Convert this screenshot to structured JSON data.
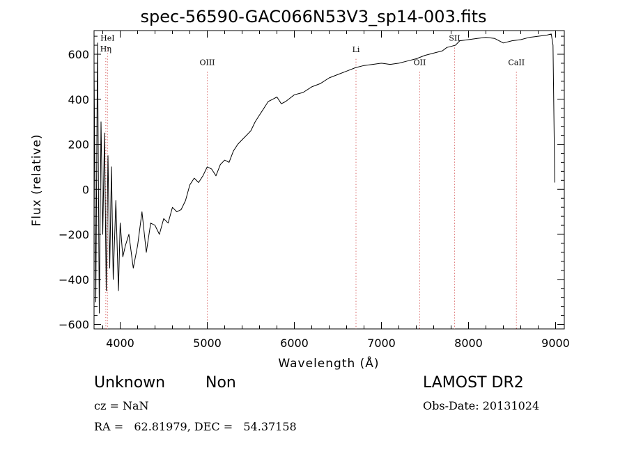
{
  "header": {
    "title": "spec-56590-GAC066N53V3_sp14-003.fits"
  },
  "footer": {
    "class": "Unknown",
    "subclass": "Non",
    "survey": "LAMOST DR2",
    "cz": "cz = NaN",
    "obs_date": "Obs-Date: 20131024",
    "radec": "RA =   62.81979, DEC =   54.37158"
  },
  "chart_data": {
    "type": "line",
    "title": "spec-56590-GAC066N53V3_sp14-003.fits",
    "xlabel": "Wavelength (Å)",
    "ylabel": "Flux (relative)",
    "xlim": [
      3700,
      9100
    ],
    "ylim": [
      -620,
      705
    ],
    "xticks": [
      4000,
      5000,
      6000,
      7000,
      8000,
      9000
    ],
    "yticks": [
      -600,
      -400,
      -200,
      0,
      200,
      400,
      600
    ],
    "grid": false,
    "series": [
      {
        "x": [
          3700,
          3720,
          3740,
          3760,
          3780,
          3800,
          3820,
          3840,
          3860,
          3880,
          3900,
          3920,
          3950,
          3980,
          4000,
          4030,
          4060,
          4100,
          4150,
          4200,
          4250,
          4300,
          4350,
          4400,
          4450,
          4500,
          4550,
          4600,
          4650,
          4700,
          4750,
          4800,
          4850,
          4900,
          4950,
          5000,
          5050,
          5100,
          5150,
          5200,
          5250,
          5300,
          5350,
          5400,
          5450,
          5500,
          5550,
          5600,
          5650,
          5700,
          5750,
          5800,
          5850,
          5900,
          5950,
          6000,
          6100,
          6200,
          6300,
          6400,
          6500,
          6600,
          6700,
          6800,
          6900,
          7000,
          7100,
          7200,
          7300,
          7400,
          7500,
          7600,
          7700,
          7750,
          7800,
          7850,
          7900,
          8000,
          8100,
          8200,
          8300,
          8400,
          8500,
          8600,
          8700,
          8800,
          8900,
          8950,
          8970,
          8990
        ],
        "y": [
          550,
          -500,
          650,
          -550,
          300,
          -200,
          250,
          -450,
          150,
          -350,
          100,
          -400,
          -50,
          -450,
          -150,
          -300,
          -250,
          -200,
          -350,
          -250,
          -100,
          -280,
          -150,
          -160,
          -200,
          -130,
          -150,
          -80,
          -100,
          -90,
          -50,
          20,
          50,
          30,
          60,
          100,
          90,
          60,
          110,
          130,
          120,
          170,
          200,
          220,
          240,
          260,
          300,
          330,
          360,
          390,
          400,
          410,
          380,
          390,
          405,
          420,
          430,
          455,
          470,
          495,
          510,
          525,
          540,
          550,
          555,
          560,
          555,
          560,
          570,
          580,
          595,
          605,
          615,
          630,
          635,
          640,
          660,
          665,
          670,
          675,
          670,
          650,
          660,
          665,
          675,
          680,
          685,
          690,
          640,
          30
        ]
      }
    ],
    "lines": [
      {
        "label": "HeI",
        "x": 3855,
        "ypos": 660
      },
      {
        "label": "Hη",
        "x": 3835,
        "ypos": 612
      },
      {
        "label": "OIII",
        "x": 5000,
        "ypos": 552
      },
      {
        "label": "Li",
        "x": 6708,
        "ypos": 610
      },
      {
        "label": "OII",
        "x": 7440,
        "ypos": 552
      },
      {
        "label": "SII",
        "x": 7840,
        "ypos": 660
      },
      {
        "label": "CaII",
        "x": 8550,
        "ypos": 552
      }
    ]
  }
}
